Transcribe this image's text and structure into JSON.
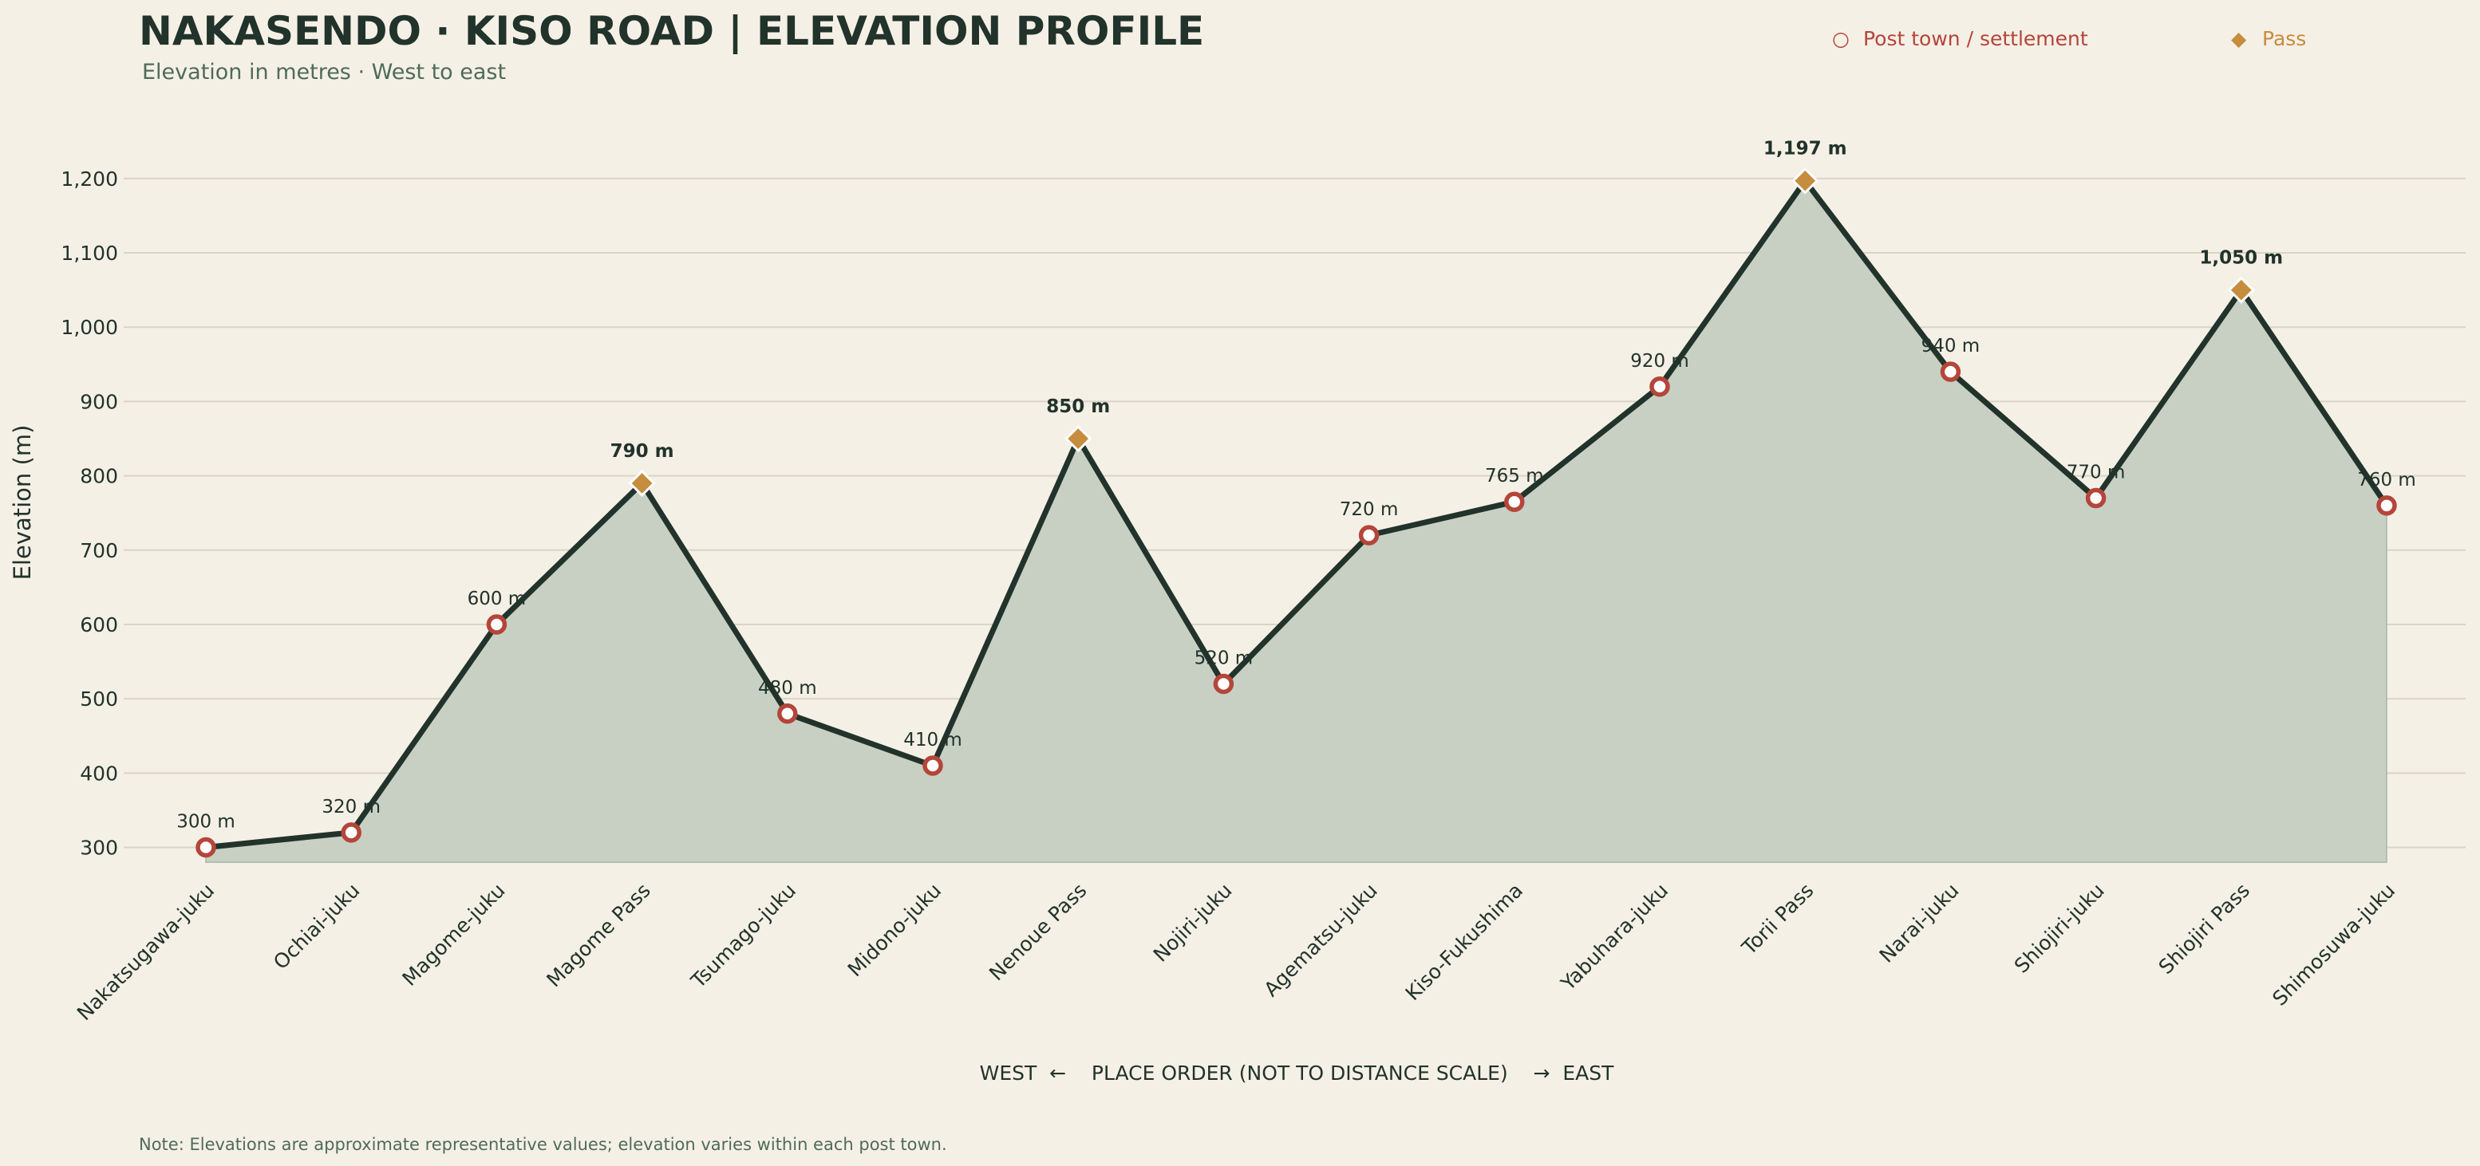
{
  "colors": {
    "background": "#f5f0e6",
    "line": "#21332b",
    "area": "#c8d0c4",
    "grid": "#d9d4c8",
    "town": "#b5453a",
    "pass": "#c58d3d",
    "subtitle": "#4f6b5a"
  },
  "chart_data": {
    "type": "area",
    "title": "NAKASENDO · KISO ROAD  |  ELEVATION PROFILE",
    "subtitle": "Elevation in metres · West to east",
    "ylabel": "Elevation (m)",
    "xlabel": "WEST  ←    PLACE ORDER (NOT TO DISTANCE SCALE)    →  EAST",
    "ylim": [
      280,
      1250
    ],
    "yticks": [
      300,
      400,
      500,
      600,
      700,
      800,
      900,
      1000,
      1100,
      1200
    ],
    "ytick_labels": [
      "300",
      "400",
      "500",
      "600",
      "700",
      "800",
      "900",
      "1,000",
      "1,100",
      "1,200"
    ],
    "grid": true,
    "legend_position": "top-right",
    "legend": [
      {
        "symbol": "○",
        "label": "Post town / settlement",
        "kind": "town"
      },
      {
        "symbol": "◆",
        "label": "Pass",
        "kind": "pass"
      }
    ],
    "categories": [
      "Nakatsugawa-juku",
      "Ochiai-juku",
      "Magome-juku",
      "Magome Pass",
      "Tsumago-juku",
      "Midono-juku",
      "Nenoue Pass",
      "Nojiri-juku",
      "Agematsu-juku",
      "Kiso-Fukushima",
      "Yabuhara-juku",
      "Torii Pass",
      "Narai-juku",
      "Shiojiri-juku",
      "Shiojiri Pass",
      "Shimosuwa-juku"
    ],
    "values": [
      300,
      320,
      600,
      790,
      480,
      410,
      850,
      520,
      720,
      765,
      920,
      1197,
      940,
      770,
      1050,
      760
    ],
    "kinds": [
      "town",
      "town",
      "town",
      "pass",
      "town",
      "town",
      "pass",
      "town",
      "town",
      "town",
      "town",
      "pass",
      "town",
      "town",
      "pass",
      "town"
    ],
    "labels": [
      "300 m",
      "320 m",
      "600 m",
      "790 m",
      "480 m",
      "410 m",
      "850 m",
      "520 m",
      "720 m",
      "765 m",
      "920 m",
      "1,197 m",
      "940 m",
      "770 m",
      "1,050 m",
      "760 m"
    ],
    "note": "Note: Elevations are approximate representative values; elevation varies within each post town."
  }
}
